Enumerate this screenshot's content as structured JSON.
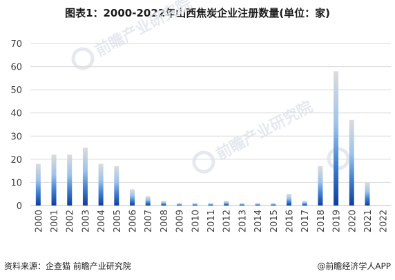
{
  "title": "图表1：2000-2022年山西焦炭企业注册数量(单位：家)",
  "footer": {
    "source": "资料来源：企查猫 前瞻产业研究院",
    "brand": "@前瞻经济学人APP"
  },
  "watermark": {
    "text": "前瞻产业研究院"
  },
  "colors": {
    "bar_top": "#dcdcdc",
    "bar_mid": "#5b9bd5",
    "bar_bottom": "#0b3e9c",
    "grid": "#d9d9d9",
    "axis_text": "#404040"
  },
  "chart_data": {
    "type": "bar",
    "categories": [
      "2000",
      "2001",
      "2002",
      "2003",
      "2004",
      "2005",
      "2006",
      "2007",
      "2008",
      "2009",
      "2010",
      "2011",
      "2012",
      "2013",
      "2014",
      "2015",
      "2016",
      "2017",
      "2018",
      "2019",
      "2020",
      "2021",
      "2022"
    ],
    "values": [
      18,
      22,
      22,
      25,
      18,
      17,
      7,
      4,
      2,
      1,
      1,
      1,
      2,
      1,
      1,
      1,
      5,
      2,
      17,
      58,
      37,
      10,
      0
    ],
    "ylim": [
      0,
      70
    ],
    "yticks": [
      0,
      10,
      20,
      30,
      40,
      50,
      60,
      70
    ],
    "grid": true,
    "legend": "none"
  }
}
